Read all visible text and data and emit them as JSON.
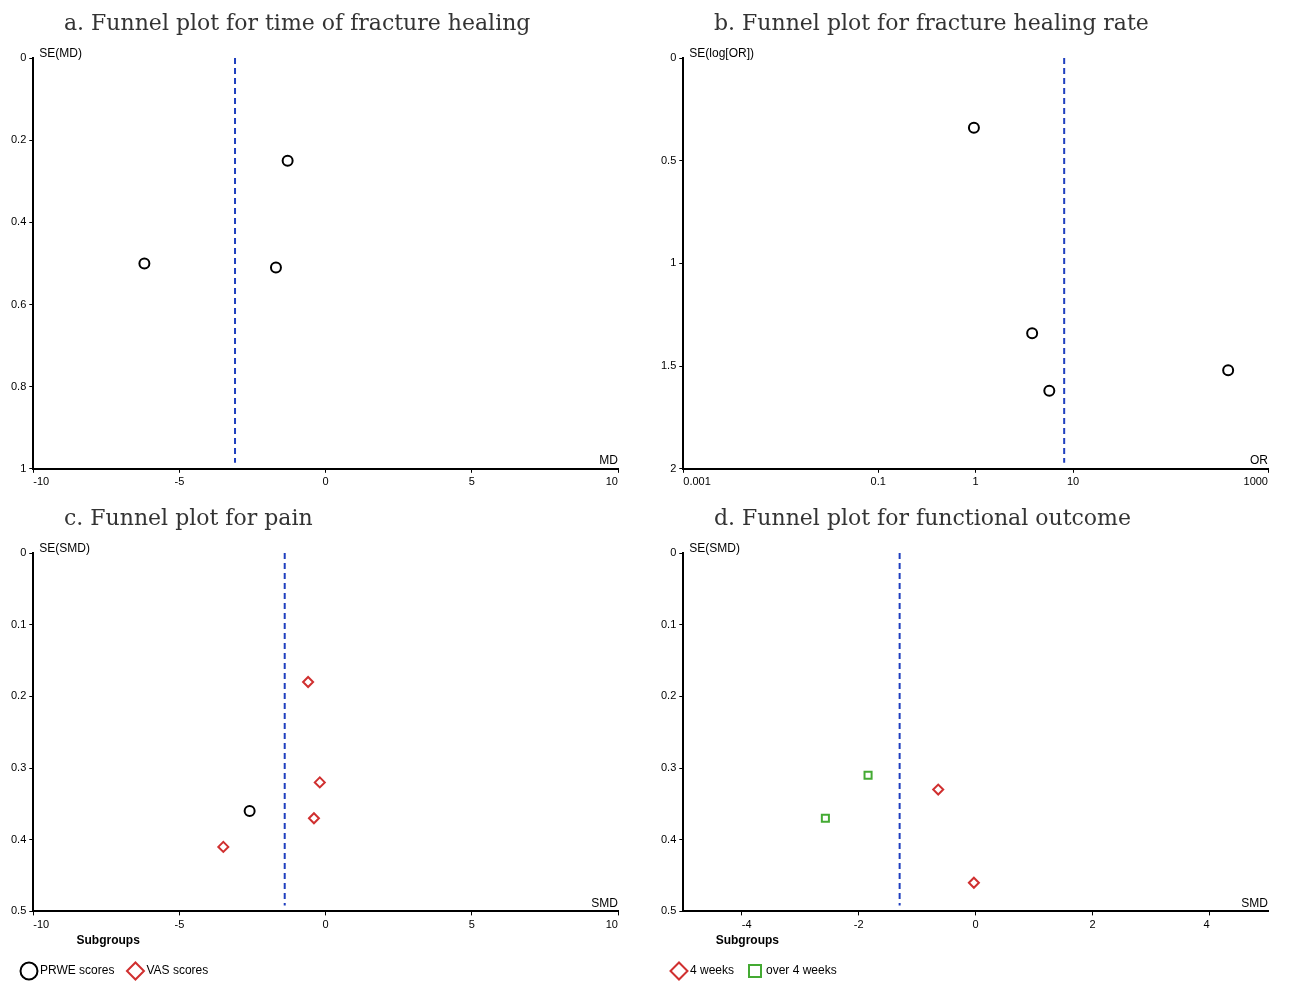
{
  "chart_data": [
    {
      "type": "scatter",
      "title": "a. Funnel plot for time of fracture healing",
      "xlabel": "MD",
      "ylabel": "SE(MD)",
      "xlim": [
        -10,
        10
      ],
      "xticks": [
        -10,
        -5,
        0,
        5,
        10
      ],
      "ylim": [
        1,
        0
      ],
      "yticks": [
        0,
        0.2,
        0.4,
        0.6,
        0.8,
        1
      ],
      "grid": false,
      "legend": false,
      "marker": "circle",
      "series": [
        {
          "color": "#000000",
          "x": [
            -6.2,
            -1.3,
            -1.7
          ],
          "values": [
            0.5,
            0.25,
            0.51
          ]
        }
      ],
      "ref_lines": [
        {
          "axis": "x",
          "value": -3.1,
          "color": "#1f3fbf",
          "line_style": "dashed"
        }
      ]
    },
    {
      "type": "scatter",
      "title": "b. Funnel plot for fracture healing rate",
      "xlabel": "OR",
      "ylabel": "SE(log[OR])",
      "log": "x",
      "xlim": [
        0.001,
        1000
      ],
      "xticks": [
        0.001,
        0.1,
        1,
        10,
        1000
      ],
      "ylim": [
        2,
        0
      ],
      "yticks": [
        0,
        0.5,
        1,
        1.5,
        2
      ],
      "grid": false,
      "legend": false,
      "marker": "circle",
      "series": [
        {
          "color": "#000000",
          "x": [
            0.96,
            3.8,
            5.7,
            390
          ],
          "values": [
            0.34,
            1.34,
            1.62,
            1.52
          ]
        }
      ],
      "ref_lines": [
        {
          "axis": "x",
          "value": 8.1,
          "color": "#1f3fbf",
          "line_style": "dashed"
        }
      ]
    },
    {
      "type": "scatter",
      "title": "c. Funnel plot for pain",
      "xlabel": "SMD",
      "ylabel": "SE(SMD)",
      "xlim": [
        -10,
        10
      ],
      "xticks": [
        -10,
        -5,
        0,
        5,
        10
      ],
      "ylim": [
        0.5,
        0
      ],
      "yticks": [
        0,
        0.1,
        0.2,
        0.3,
        0.4,
        0.5
      ],
      "grid": false,
      "legend": "bottom",
      "legend_title": "Subgroups",
      "series": [
        {
          "name": "PRWE scores",
          "color": "#000000",
          "marker": "circle",
          "x": [
            -2.6
          ],
          "values": [
            0.36
          ]
        },
        {
          "name": "VAS scores",
          "color": "#d03030",
          "marker": "diamond",
          "x": [
            -0.6,
            -0.2,
            -0.4,
            -3.5
          ],
          "values": [
            0.18,
            0.32,
            0.37,
            0.41
          ]
        }
      ],
      "ref_lines": [
        {
          "axis": "x",
          "value": -1.4,
          "color": "#1f3fbf",
          "line_style": "dashed"
        }
      ]
    },
    {
      "type": "scatter",
      "title": "d. Funnel plot for functional outcome",
      "xlabel": "SMD",
      "ylabel": "SE(SMD)",
      "xlim": [
        -5,
        5
      ],
      "xticks": [
        -4,
        -2,
        0,
        2,
        4
      ],
      "ylim": [
        0.5,
        0
      ],
      "yticks": [
        0,
        0.1,
        0.2,
        0.3,
        0.4,
        0.5
      ],
      "grid": false,
      "legend": "bottom",
      "legend_title": "Subgroups",
      "series": [
        {
          "name": "4 weeks",
          "color": "#d03030",
          "marker": "diamond",
          "x": [
            -0.64,
            -0.03
          ],
          "values": [
            0.33,
            0.46
          ]
        },
        {
          "name": "over 4 weeks",
          "color": "#44aa33",
          "marker": "square",
          "x": [
            -1.84,
            -2.57
          ],
          "values": [
            0.31,
            0.37
          ]
        }
      ],
      "ref_lines": [
        {
          "axis": "x",
          "value": -1.3,
          "color": "#1f3fbf",
          "line_style": "dashed"
        }
      ]
    }
  ]
}
